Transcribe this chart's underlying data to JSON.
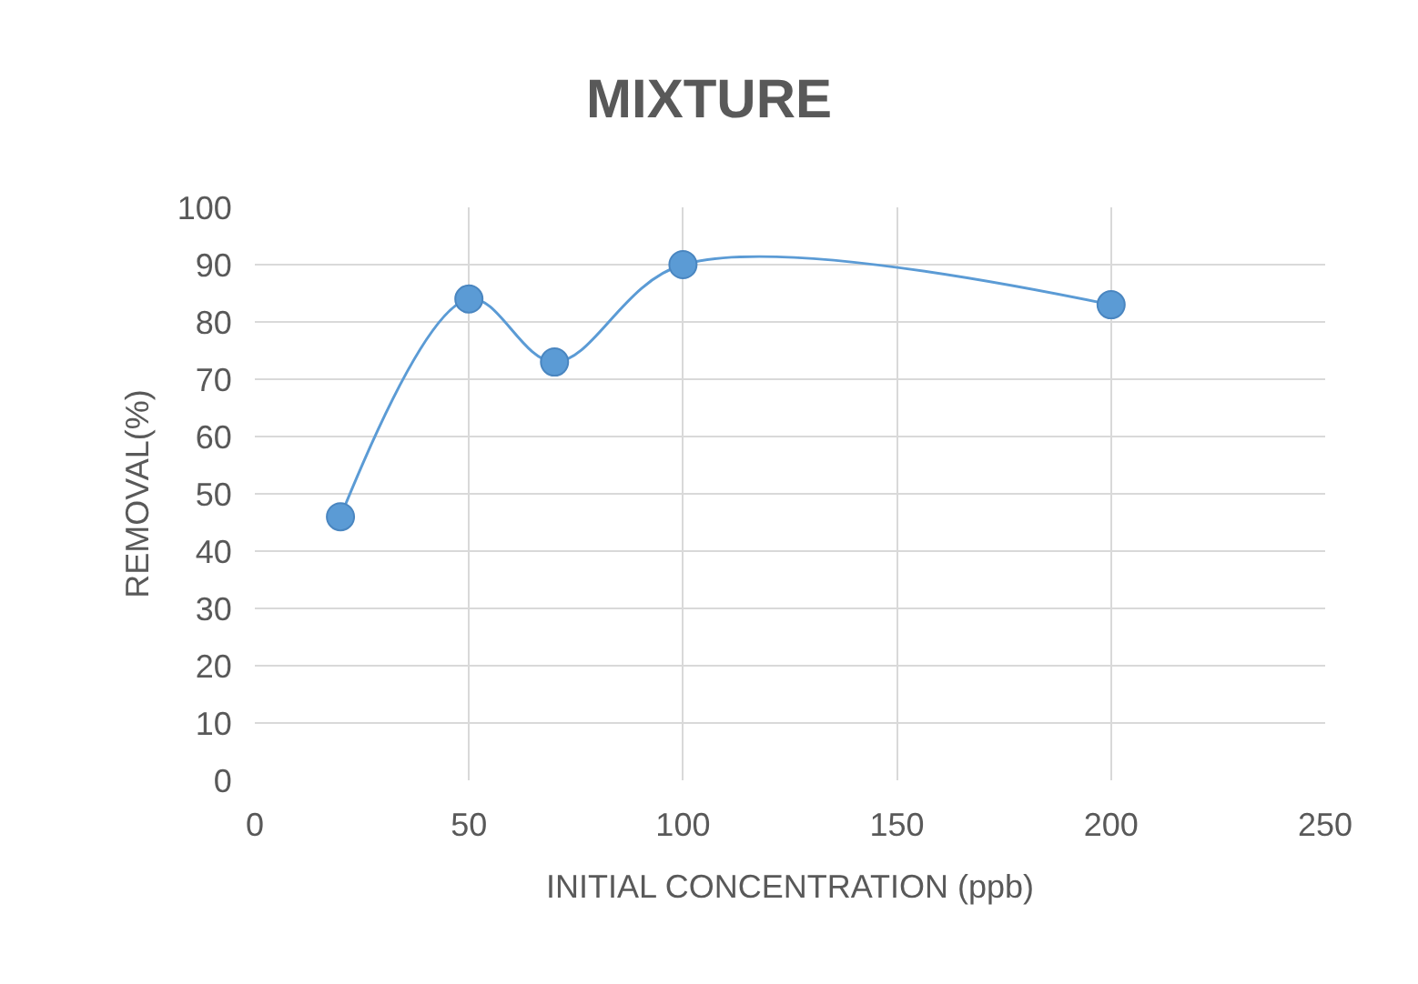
{
  "chart_data": {
    "type": "line",
    "title": "MIXTURE",
    "xlabel": "INITIAL CONCENTRATION (ppb)",
    "ylabel": "REMOVAL(%)",
    "x": [
      20,
      50,
      70,
      100,
      200
    ],
    "series": [
      {
        "color": "#5b9bd5",
        "values": [
          46,
          84,
          73,
          90,
          83
        ]
      }
    ],
    "xlim": [
      0,
      250
    ],
    "xticks": [
      0,
      50,
      100,
      150,
      200,
      250
    ],
    "ylim": [
      0,
      100
    ],
    "yticks": [
      0,
      10,
      20,
      30,
      40,
      50,
      60,
      70,
      80,
      90,
      100
    ],
    "grid": true,
    "marker": "circle",
    "line_style": "solid"
  }
}
